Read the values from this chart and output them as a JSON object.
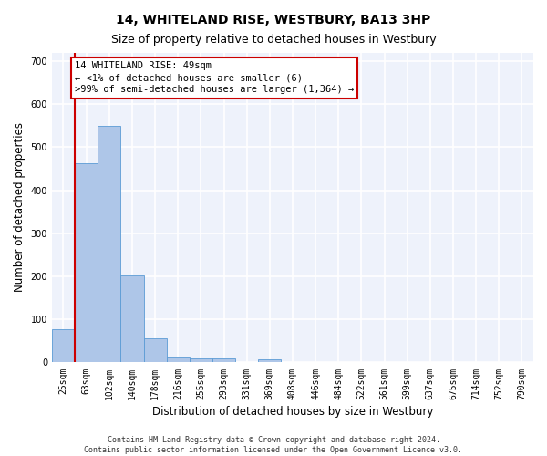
{
  "title": "14, WHITELAND RISE, WESTBURY, BA13 3HP",
  "subtitle": "Size of property relative to detached houses in Westbury",
  "xlabel": "Distribution of detached houses by size in Westbury",
  "ylabel": "Number of detached properties",
  "footer_line1": "Contains HM Land Registry data © Crown copyright and database right 2024.",
  "footer_line2": "Contains public sector information licensed under the Open Government Licence v3.0.",
  "bar_labels": [
    "25sqm",
    "63sqm",
    "102sqm",
    "140sqm",
    "178sqm",
    "216sqm",
    "255sqm",
    "293sqm",
    "331sqm",
    "369sqm",
    "408sqm",
    "446sqm",
    "484sqm",
    "522sqm",
    "561sqm",
    "599sqm",
    "637sqm",
    "675sqm",
    "714sqm",
    "752sqm",
    "790sqm"
  ],
  "bar_values": [
    78,
    463,
    550,
    203,
    57,
    14,
    10,
    10,
    0,
    8,
    0,
    0,
    0,
    0,
    0,
    0,
    0,
    0,
    0,
    0,
    0
  ],
  "bar_color": "#aec6e8",
  "bar_edge_color": "#5b9bd5",
  "vline_color": "#cc0000",
  "annotation_text": "14 WHITELAND RISE: 49sqm\n← <1% of detached houses are smaller (6)\n>99% of semi-detached houses are larger (1,364) →",
  "annotation_box_color": "#cc0000",
  "ylim": [
    0,
    720
  ],
  "yticks": [
    0,
    100,
    200,
    300,
    400,
    500,
    600,
    700
  ],
  "background_color": "#eef2fb",
  "grid_color": "#ffffff",
  "title_fontsize": 10,
  "subtitle_fontsize": 9,
  "axis_label_fontsize": 8.5,
  "tick_fontsize": 7,
  "annotation_fontsize": 7.5,
  "footer_fontsize": 6
}
